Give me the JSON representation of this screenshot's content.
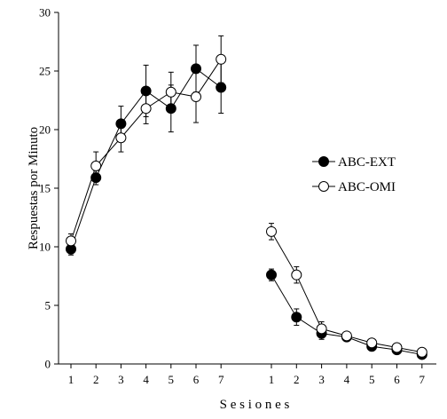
{
  "chart_data": {
    "type": "line",
    "xlabel": "S e s i o n e s",
    "ylabel": "Respuestas  por  Minuto",
    "ylim": [
      0,
      30
    ],
    "yticks": [
      "0",
      "5",
      "10",
      "15",
      "20",
      "25",
      "30"
    ],
    "phases": [
      {
        "x": [
          1,
          2,
          3,
          4,
          5,
          6,
          7
        ],
        "xtick_labels": [
          "1",
          "2",
          "3",
          "4",
          "5",
          "6",
          "7"
        ]
      },
      {
        "x": [
          1,
          2,
          3,
          4,
          5,
          6,
          7
        ],
        "xtick_labels": [
          "1",
          "2",
          "3",
          "4",
          "5",
          "6",
          "7"
        ]
      }
    ],
    "series": [
      {
        "name": "ABC-EXT",
        "marker": "filled-circle",
        "color": "#000000",
        "phases": [
          {
            "values": [
              9.8,
              15.9,
              20.5,
              23.3,
              21.8,
              25.2,
              23.6
            ],
            "errors": [
              0.5,
              0.6,
              1.5,
              2.2,
              2.0,
              2.0,
              2.2
            ]
          },
          {
            "values": [
              7.6,
              4.0,
              2.6,
              2.3,
              1.5,
              1.2,
              0.8
            ],
            "errors": [
              0.5,
              0.7,
              0.5,
              0.3,
              0.3,
              0.2,
              0.2
            ]
          }
        ]
      },
      {
        "name": "ABC-OMI",
        "marker": "open-circle",
        "color": "#ffffff",
        "phases": [
          {
            "values": [
              10.5,
              16.9,
              19.3,
              21.8,
              23.2,
              22.8,
              26.0
            ],
            "errors": [
              0.6,
              1.2,
              1.2,
              1.3,
              1.7,
              2.2,
              2.0
            ]
          },
          {
            "values": [
              11.3,
              7.6,
              3.0,
              2.4,
              1.8,
              1.4,
              1.0
            ],
            "errors": [
              0.7,
              0.7,
              0.6,
              0.3,
              0.3,
              0.2,
              0.2
            ]
          }
        ]
      }
    ],
    "legend": {
      "placement": "right-middle"
    }
  }
}
